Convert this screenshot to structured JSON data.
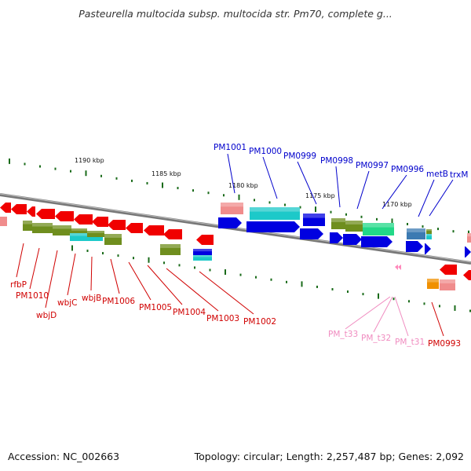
{
  "title": "Pasteurella multocida subsp. multocida str. Pm70, complete g...",
  "footer": {
    "accession": "Accession: NC_002663",
    "stats": "Topology: circular; Length: 2,257,487 bp; Genes: 2,092"
  },
  "colors": {
    "red": "#f00000",
    "olive": "#6f8e1e",
    "cyan": "#1cc9c9",
    "blue": "#0000e0",
    "green": "#22d888",
    "pink": "#f08c8c",
    "steelblue": "#3c7ab2",
    "orange": "#f09000",
    "rna": "#ff88bb",
    "backbone": "#777777",
    "label_blue": "#0000cc",
    "label_red": "#d00000",
    "label_pink": "#f08cc0",
    "tick": "#1a6b1a"
  },
  "scale_labels": [
    "1190 kbp",
    "1185 kbp",
    "1180 kbp",
    "1175 kbp",
    "1170 kbp"
  ],
  "top_labels": [
    "PM1001",
    "PM1000",
    "PM0999",
    "PM0998",
    "PM0997",
    "PM0996",
    "metB",
    "trxM"
  ],
  "bottom_labels": [
    "rfbP",
    "PM1010",
    "wbjD",
    "wbjC",
    "wbjB",
    "PM1006",
    "PM1005",
    "PM1004",
    "PM1003",
    "PM1002"
  ],
  "trna_labels": [
    "PM_t33",
    "PM_t32",
    "PM_t31"
  ],
  "right_label": "PM0993"
}
